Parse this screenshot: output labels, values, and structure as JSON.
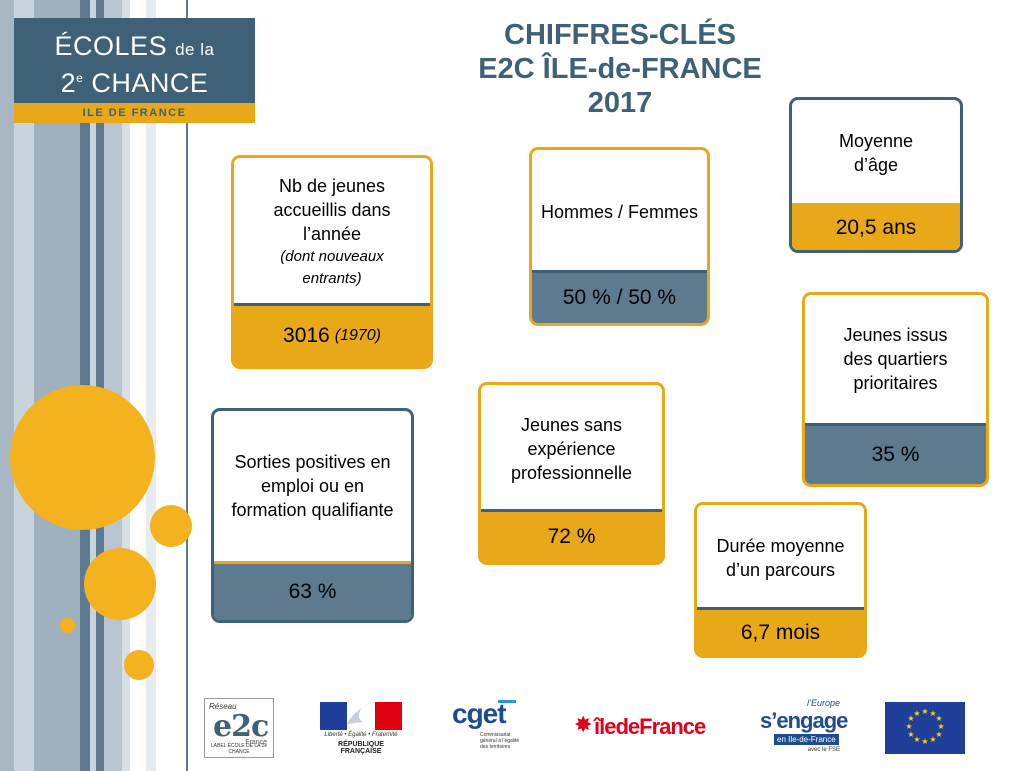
{
  "logo": {
    "line1_main": "ÉCOLES",
    "line1_small": "de la",
    "line2_num": "2",
    "line2_sup": "e",
    "line2_main": "CHANCE",
    "band": "ILE DE FRANCE"
  },
  "title": {
    "line1": "CHIFFRES-CLÉS",
    "line2": "E2C ÎLE-de-FRANCE",
    "line3": "2017"
  },
  "cards": {
    "accueillis": {
      "label_lines": [
        "Nb de jeunes",
        "accueillis dans",
        "l’année"
      ],
      "note_lines": [
        "(dont nouveaux",
        "entrants)"
      ],
      "value": "3016",
      "value_note": "(1970)"
    },
    "hommes_femmes": {
      "label": "Hommes / Femmes",
      "value": "50 % / 50 %"
    },
    "age": {
      "label_lines": [
        "Moyenne",
        "d’âge"
      ],
      "value": "20,5 ans"
    },
    "quartiers": {
      "label_lines": [
        "Jeunes issus",
        "des quartiers",
        "prioritaires"
      ],
      "value": "35 %"
    },
    "sorties": {
      "label_lines": [
        "Sorties positives en",
        "emploi ou en",
        "formation qualifiante"
      ],
      "value": "63 %"
    },
    "experience": {
      "label_lines": [
        "Jeunes sans",
        "expérience",
        "professionnelle"
      ],
      "value": "72 %"
    },
    "duree": {
      "label_lines": [
        "Durée moyenne",
        "d’un parcours"
      ],
      "value": "6,7 mois"
    }
  },
  "footer": {
    "e2c": {
      "reseau": "Réseau",
      "mark": "e2c",
      "france": "France",
      "label": "LABEL ÉCOLE DE LA 2e CHANCE"
    },
    "republique": {
      "motto": "Liberté • Égalité • Fraternité",
      "name": "RÉPUBLIQUE FRANÇAISE"
    },
    "cget": {
      "mark": "cget",
      "sub": "Commissariat général à l’égalité des territoires"
    },
    "idf": {
      "mark": "îledeFrance"
    },
    "europe": {
      "line1": "l’Europe",
      "line2": "s’engage",
      "line3": "en Ile-de-France",
      "line4": "avec le FSE"
    }
  },
  "colors": {
    "orange": "#e8a818",
    "slate": "#3e6177",
    "circle": "#f3b21e"
  },
  "icons": {
    "eu_flag": "eu-flag-icon",
    "marianne": "marianne-icon",
    "idf_star": "idf-star-icon"
  }
}
